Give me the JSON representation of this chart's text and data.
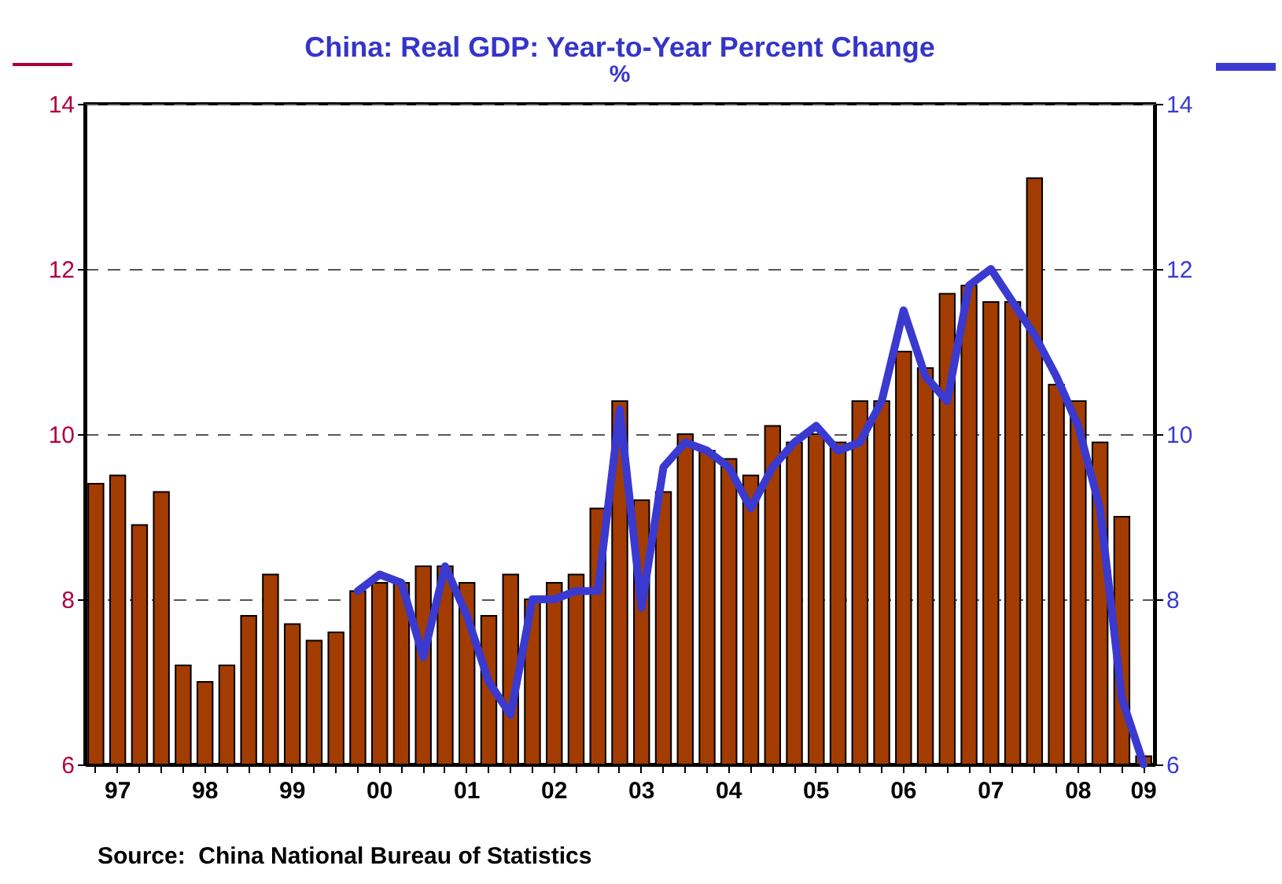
{
  "chart_data": {
    "type": "bar",
    "title": "China: Real GDP: Year-to-Year Percent Change",
    "subtitle": "%",
    "categories": [
      null,
      "97",
      null,
      null,
      null,
      "98",
      null,
      null,
      null,
      "99",
      null,
      null,
      null,
      "00",
      null,
      null,
      null,
      "01",
      null,
      null,
      null,
      "02",
      null,
      null,
      null,
      "03",
      null,
      null,
      null,
      "04",
      null,
      null,
      null,
      "05",
      null,
      null,
      null,
      "06",
      null,
      null,
      null,
      "07",
      null,
      null,
      null,
      "08",
      null,
      null,
      "09"
    ],
    "series": [
      {
        "color": "#a33c00",
        "values": [
          9.4,
          9.5,
          8.9,
          9.3,
          7.2,
          7.0,
          7.2,
          7.8,
          8.3,
          7.7,
          7.5,
          7.6,
          8.1,
          8.2,
          8.2,
          8.4,
          8.4,
          8.2,
          7.8,
          8.3,
          8.0,
          8.2,
          8.3,
          9.1,
          10.4,
          9.2,
          9.3,
          10.0,
          9.8,
          9.7,
          9.5,
          10.1,
          9.9,
          10.0,
          9.9,
          10.4,
          10.4,
          11.0,
          10.8,
          11.7,
          11.8,
          11.6,
          11.6,
          13.1,
          10.6,
          10.4,
          9.9,
          9.0,
          6.1
        ]
      },
      {
        "type": "line",
        "axis": "y2",
        "color": "#3a3ad0",
        "values": [
          null,
          null,
          null,
          null,
          null,
          null,
          null,
          null,
          null,
          null,
          null,
          null,
          8.1,
          8.3,
          8.2,
          7.3,
          8.4,
          7.8,
          7.0,
          6.6,
          8.0,
          8.0,
          8.1,
          8.1,
          10.3,
          7.9,
          9.6,
          9.9,
          9.8,
          9.6,
          9.1,
          9.6,
          9.9,
          10.1,
          9.8,
          9.9,
          10.4,
          11.5,
          10.7,
          10.4,
          11.8,
          12.0,
          11.6,
          11.2,
          10.7,
          10.1,
          9.1,
          6.8,
          6.0
        ]
      }
    ],
    "ylim": [
      6,
      14
    ],
    "yticks": [
      6,
      8,
      10,
      12,
      14
    ],
    "y2lim": [
      6,
      14
    ],
    "y2ticks": [
      6,
      8,
      10,
      12,
      14
    ],
    "grid": "y",
    "annotations": [
      "Source:  China National Bureau of Statistics"
    ]
  }
}
